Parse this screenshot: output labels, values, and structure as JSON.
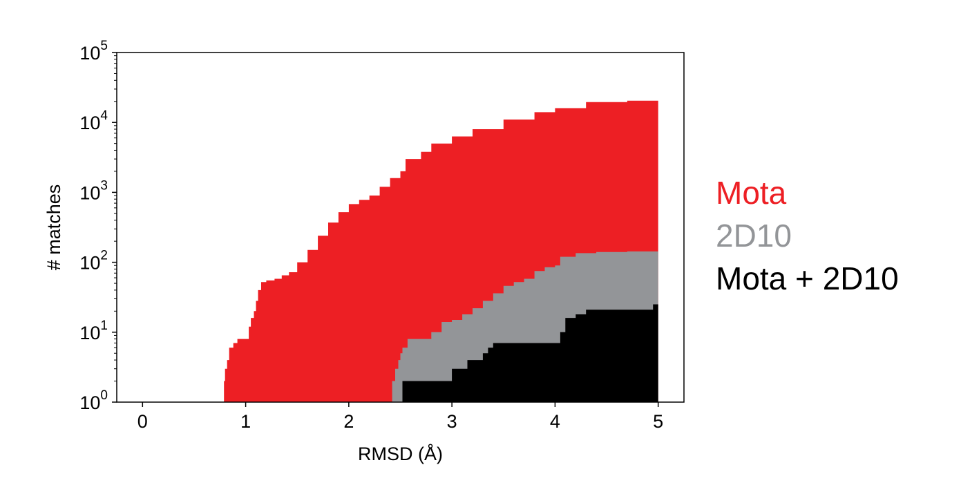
{
  "chart_data": {
    "type": "area",
    "title": "",
    "xlabel": "RMSD (Å)",
    "ylabel": "# matches",
    "xlim": [
      -0.25,
      5.25
    ],
    "ylim": [
      1,
      100000
    ],
    "y_scale": "log",
    "grid": false,
    "legend_position": "right",
    "x_ticks": [
      {
        "value": 0,
        "label": "0"
      },
      {
        "value": 1,
        "label": "1"
      },
      {
        "value": 2,
        "label": "2"
      },
      {
        "value": 3,
        "label": "3"
      },
      {
        "value": 4,
        "label": "4"
      },
      {
        "value": 5,
        "label": "5"
      }
    ],
    "y_ticks": [
      {
        "value": 1,
        "base": "10",
        "exp": "0"
      },
      {
        "value": 10,
        "base": "10",
        "exp": "1"
      },
      {
        "value": 100,
        "base": "10",
        "exp": "2"
      },
      {
        "value": 1000,
        "base": "10",
        "exp": "3"
      },
      {
        "value": 10000,
        "base": "10",
        "exp": "4"
      },
      {
        "value": 100000,
        "base": "10",
        "exp": "5"
      }
    ],
    "series": [
      {
        "name": "Mota",
        "color": "#ed1f24",
        "points": [
          [
            0.78,
            1
          ],
          [
            0.79,
            2
          ],
          [
            0.8,
            3
          ],
          [
            0.82,
            4
          ],
          [
            0.84,
            6
          ],
          [
            0.88,
            7
          ],
          [
            0.92,
            8
          ],
          [
            1.02,
            8
          ],
          [
            1.03,
            12
          ],
          [
            1.05,
            16
          ],
          [
            1.08,
            20
          ],
          [
            1.1,
            28
          ],
          [
            1.12,
            40
          ],
          [
            1.15,
            52
          ],
          [
            1.2,
            55
          ],
          [
            1.28,
            58
          ],
          [
            1.35,
            65
          ],
          [
            1.42,
            72
          ],
          [
            1.5,
            100
          ],
          [
            1.6,
            150
          ],
          [
            1.7,
            240
          ],
          [
            1.8,
            370
          ],
          [
            1.9,
            520
          ],
          [
            2.0,
            680
          ],
          [
            2.1,
            780
          ],
          [
            2.2,
            900
          ],
          [
            2.3,
            1200
          ],
          [
            2.4,
            1600
          ],
          [
            2.5,
            2000
          ],
          [
            2.55,
            3000
          ],
          [
            2.7,
            3800
          ],
          [
            2.8,
            5000
          ],
          [
            3.0,
            6300
          ],
          [
            3.2,
            8000
          ],
          [
            3.5,
            11000
          ],
          [
            3.8,
            14000
          ],
          [
            4.0,
            16000
          ],
          [
            4.3,
            19500
          ],
          [
            4.7,
            20500
          ],
          [
            5.0,
            21000
          ]
        ]
      },
      {
        "name": "2D10",
        "color": "#939598",
        "points": [
          [
            2.4,
            1
          ],
          [
            2.42,
            2
          ],
          [
            2.45,
            3
          ],
          [
            2.48,
            4
          ],
          [
            2.5,
            5
          ],
          [
            2.52,
            6
          ],
          [
            2.57,
            8
          ],
          [
            2.75,
            8
          ],
          [
            2.8,
            10
          ],
          [
            2.9,
            14
          ],
          [
            3.0,
            15
          ],
          [
            3.1,
            18
          ],
          [
            3.2,
            22
          ],
          [
            3.3,
            28
          ],
          [
            3.4,
            36
          ],
          [
            3.5,
            46
          ],
          [
            3.6,
            52
          ],
          [
            3.7,
            58
          ],
          [
            3.8,
            75
          ],
          [
            3.9,
            85
          ],
          [
            4.0,
            90
          ],
          [
            4.05,
            120
          ],
          [
            4.2,
            135
          ],
          [
            4.4,
            140
          ],
          [
            4.7,
            143
          ],
          [
            5.0,
            145
          ]
        ]
      },
      {
        "name": "Mota + 2D10",
        "color": "#000000",
        "points": [
          [
            2.5,
            1
          ],
          [
            2.52,
            2
          ],
          [
            2.98,
            2
          ],
          [
            3.0,
            3
          ],
          [
            3.15,
            4
          ],
          [
            3.3,
            5
          ],
          [
            3.35,
            6
          ],
          [
            3.4,
            7
          ],
          [
            3.95,
            7
          ],
          [
            4.05,
            10
          ],
          [
            4.1,
            16
          ],
          [
            4.2,
            18
          ],
          [
            4.3,
            21
          ],
          [
            4.9,
            21
          ],
          [
            4.95,
            25
          ],
          [
            5.0,
            28
          ]
        ]
      }
    ]
  }
}
